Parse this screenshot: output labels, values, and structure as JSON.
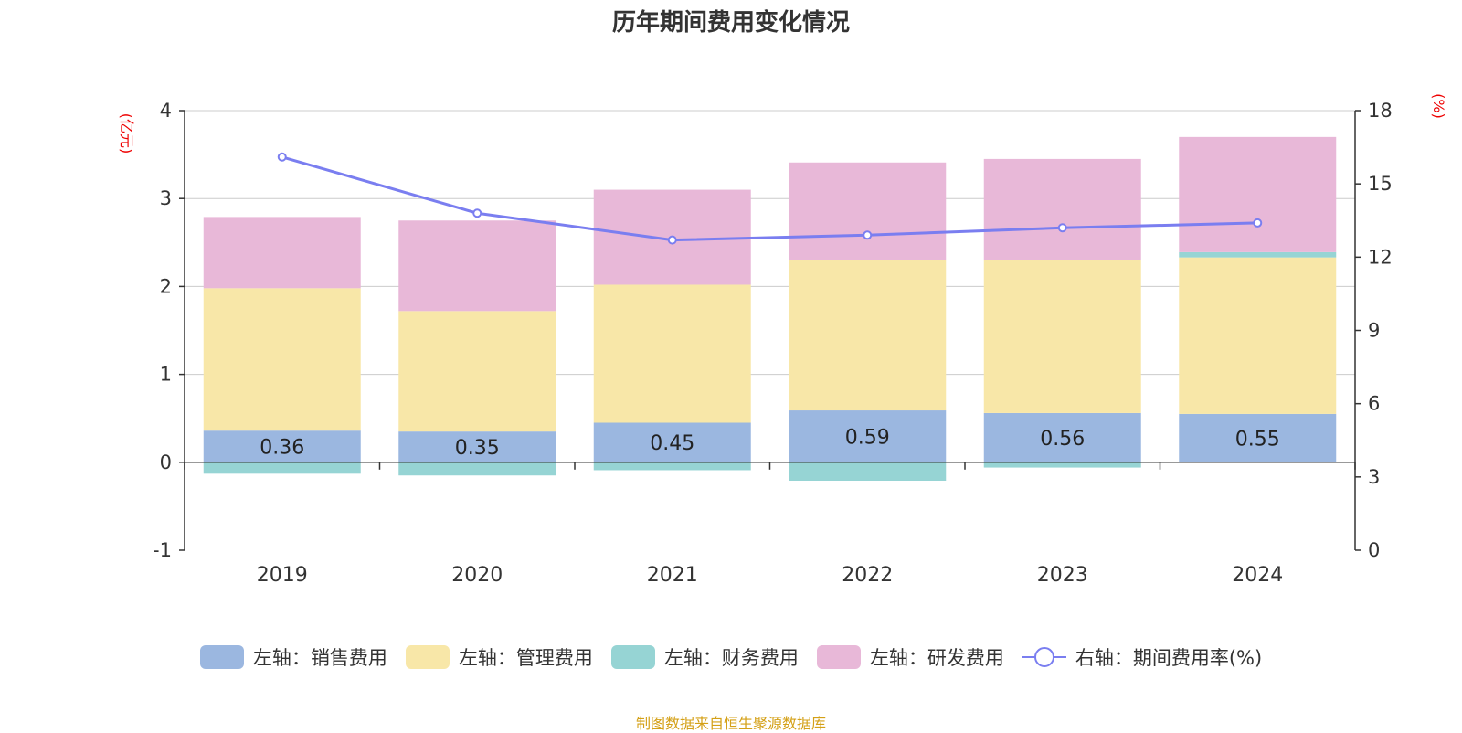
{
  "chart_data": {
    "type": "bar",
    "title": "历年期间费用变化情况",
    "categories": [
      "2019",
      "2020",
      "2021",
      "2022",
      "2023",
      "2024"
    ],
    "left_axis": {
      "label": "(亿元)",
      "ylim": [
        -1,
        4
      ],
      "ticks": [
        -1,
        0,
        1,
        2,
        3,
        4
      ]
    },
    "right_axis": {
      "label": "(%)",
      "ylim": [
        0,
        18
      ],
      "ticks": [
        0,
        3,
        6,
        9,
        12,
        15,
        18
      ]
    },
    "series": [
      {
        "name": "左轴：销售费用",
        "axis": "left",
        "color": "#9bb7e0",
        "values": [
          0.36,
          0.35,
          0.45,
          0.59,
          0.56,
          0.55
        ],
        "labels": [
          "0.36",
          "0.35",
          "0.45",
          "0.59",
          "0.56",
          "0.55"
        ]
      },
      {
        "name": "左轴：管理费用",
        "axis": "left",
        "color": "#f8e7a8",
        "values": [
          1.62,
          1.37,
          1.57,
          1.71,
          1.74,
          1.78
        ]
      },
      {
        "name": "左轴：财务费用",
        "axis": "left",
        "color": "#96d4d4",
        "values": [
          -0.13,
          -0.15,
          -0.09,
          -0.21,
          -0.06,
          0.06
        ]
      },
      {
        "name": "左轴：研发费用",
        "axis": "left",
        "color": "#e8b8d8",
        "values": [
          0.81,
          1.03,
          1.08,
          1.11,
          1.15,
          1.31
        ]
      },
      {
        "name": "右轴：期间费用率(%)",
        "axis": "right",
        "type": "line",
        "color": "#7a7ef0",
        "values": [
          16.1,
          13.8,
          12.7,
          12.9,
          13.2,
          13.4
        ]
      }
    ]
  },
  "source": "制图数据来自恒生聚源数据库"
}
